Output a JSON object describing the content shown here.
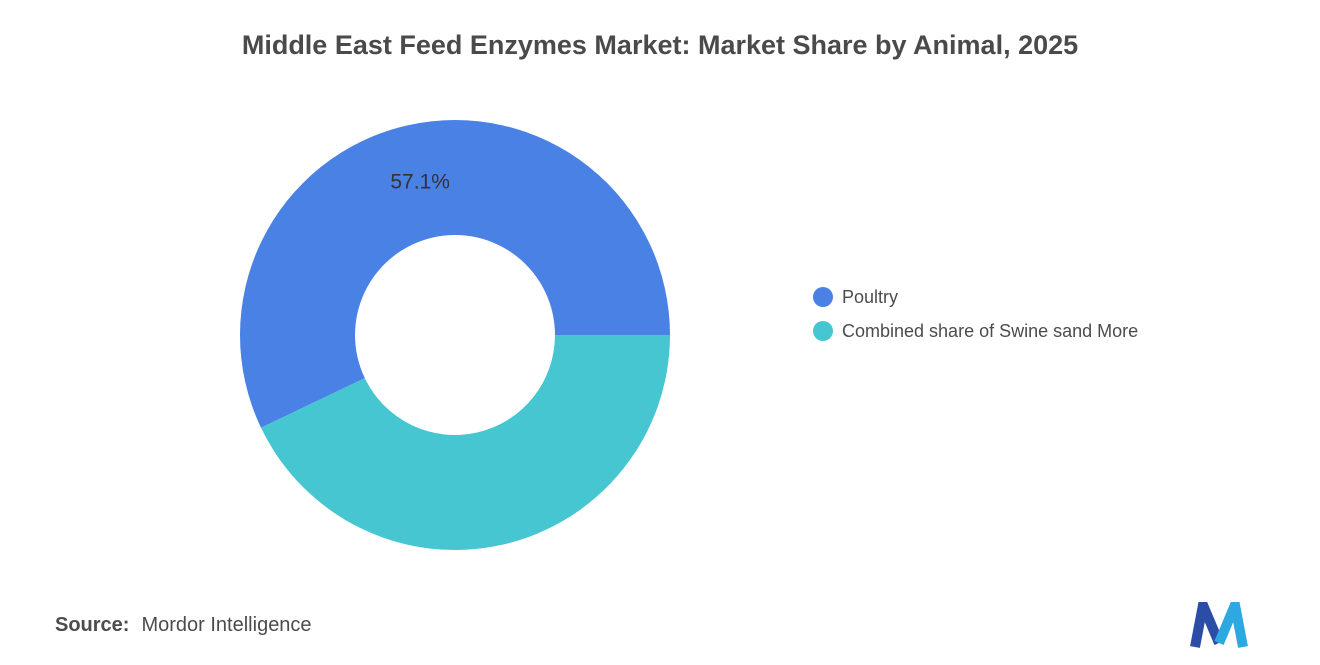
{
  "title": "Middle East Feed Enzymes Market: Market Share by Animal, 2025",
  "chart_data": {
    "type": "pie",
    "subtype": "donut",
    "title": "Middle East Feed Enzymes Market: Market Share by Animal, 2025",
    "categories": [
      "Poultry",
      "Combined share of Swine sand More"
    ],
    "values": [
      57.1,
      42.9
    ],
    "slice_labels": [
      "57.1%",
      ""
    ],
    "colors": [
      "#4a81e4",
      "#46c6d0"
    ],
    "start_angle_deg": 0,
    "direction": "counterclockwise",
    "inner_radius_ratio": 0.465,
    "legend_position": "right",
    "label_color": "#333333"
  },
  "legend": {
    "items": [
      {
        "label": "Poultry",
        "color": "#4a81e4"
      },
      {
        "label": "Combined share of Swine sand More",
        "color": "#46c6d0"
      }
    ]
  },
  "footer": {
    "source_label": "Source:",
    "source_value": "Mordor Intelligence"
  },
  "logo": {
    "name": "mordor-intelligence-logo",
    "colors": [
      "#2b4da6",
      "#2ea8e0"
    ]
  }
}
